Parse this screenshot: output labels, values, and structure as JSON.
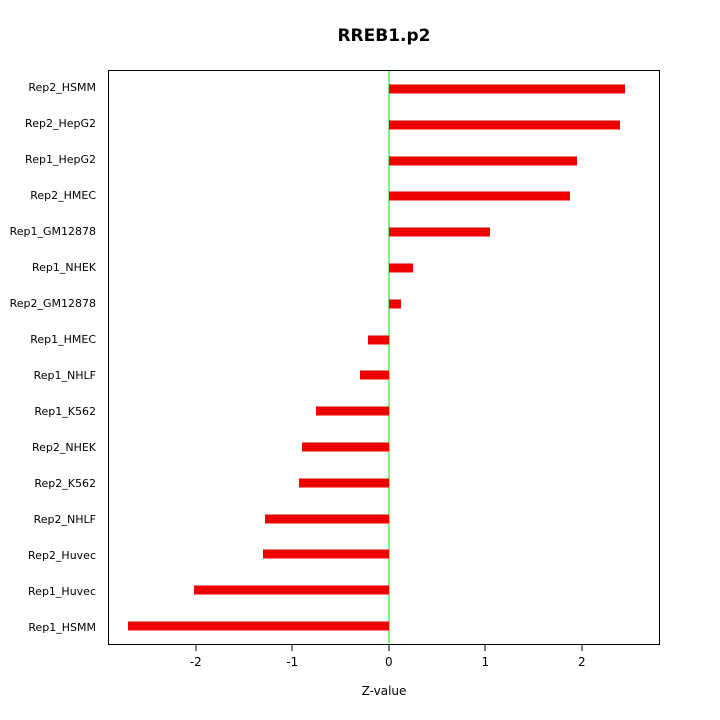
{
  "chart_data": {
    "type": "bar",
    "orientation": "horizontal",
    "title": "RREB1.p2",
    "xlabel": "Z-value",
    "ylabel": "",
    "categories": [
      "Rep2_HSMM",
      "Rep2_HepG2",
      "Rep1_HepG2",
      "Rep2_HMEC",
      "Rep1_GM12878",
      "Rep1_NHEK",
      "Rep2_GM12878",
      "Rep1_HMEC",
      "Rep1_NHLF",
      "Rep1_K562",
      "Rep2_NHEK",
      "Rep2_K562",
      "Rep2_NHLF",
      "Rep2_Huvec",
      "Rep1_Huvec",
      "Rep1_HSMM"
    ],
    "values": [
      2.45,
      2.4,
      1.95,
      1.88,
      1.05,
      0.25,
      0.13,
      -0.22,
      -0.3,
      -0.75,
      -0.9,
      -0.93,
      -1.28,
      -1.3,
      -2.02,
      -2.7
    ],
    "xlim": [
      -2.9,
      2.8
    ],
    "xticks": [
      -2,
      -1,
      0,
      1,
      2
    ],
    "bar_color": "#ff0000",
    "zero_line_color": "#00dd00",
    "grid": false,
    "legend": false
  }
}
